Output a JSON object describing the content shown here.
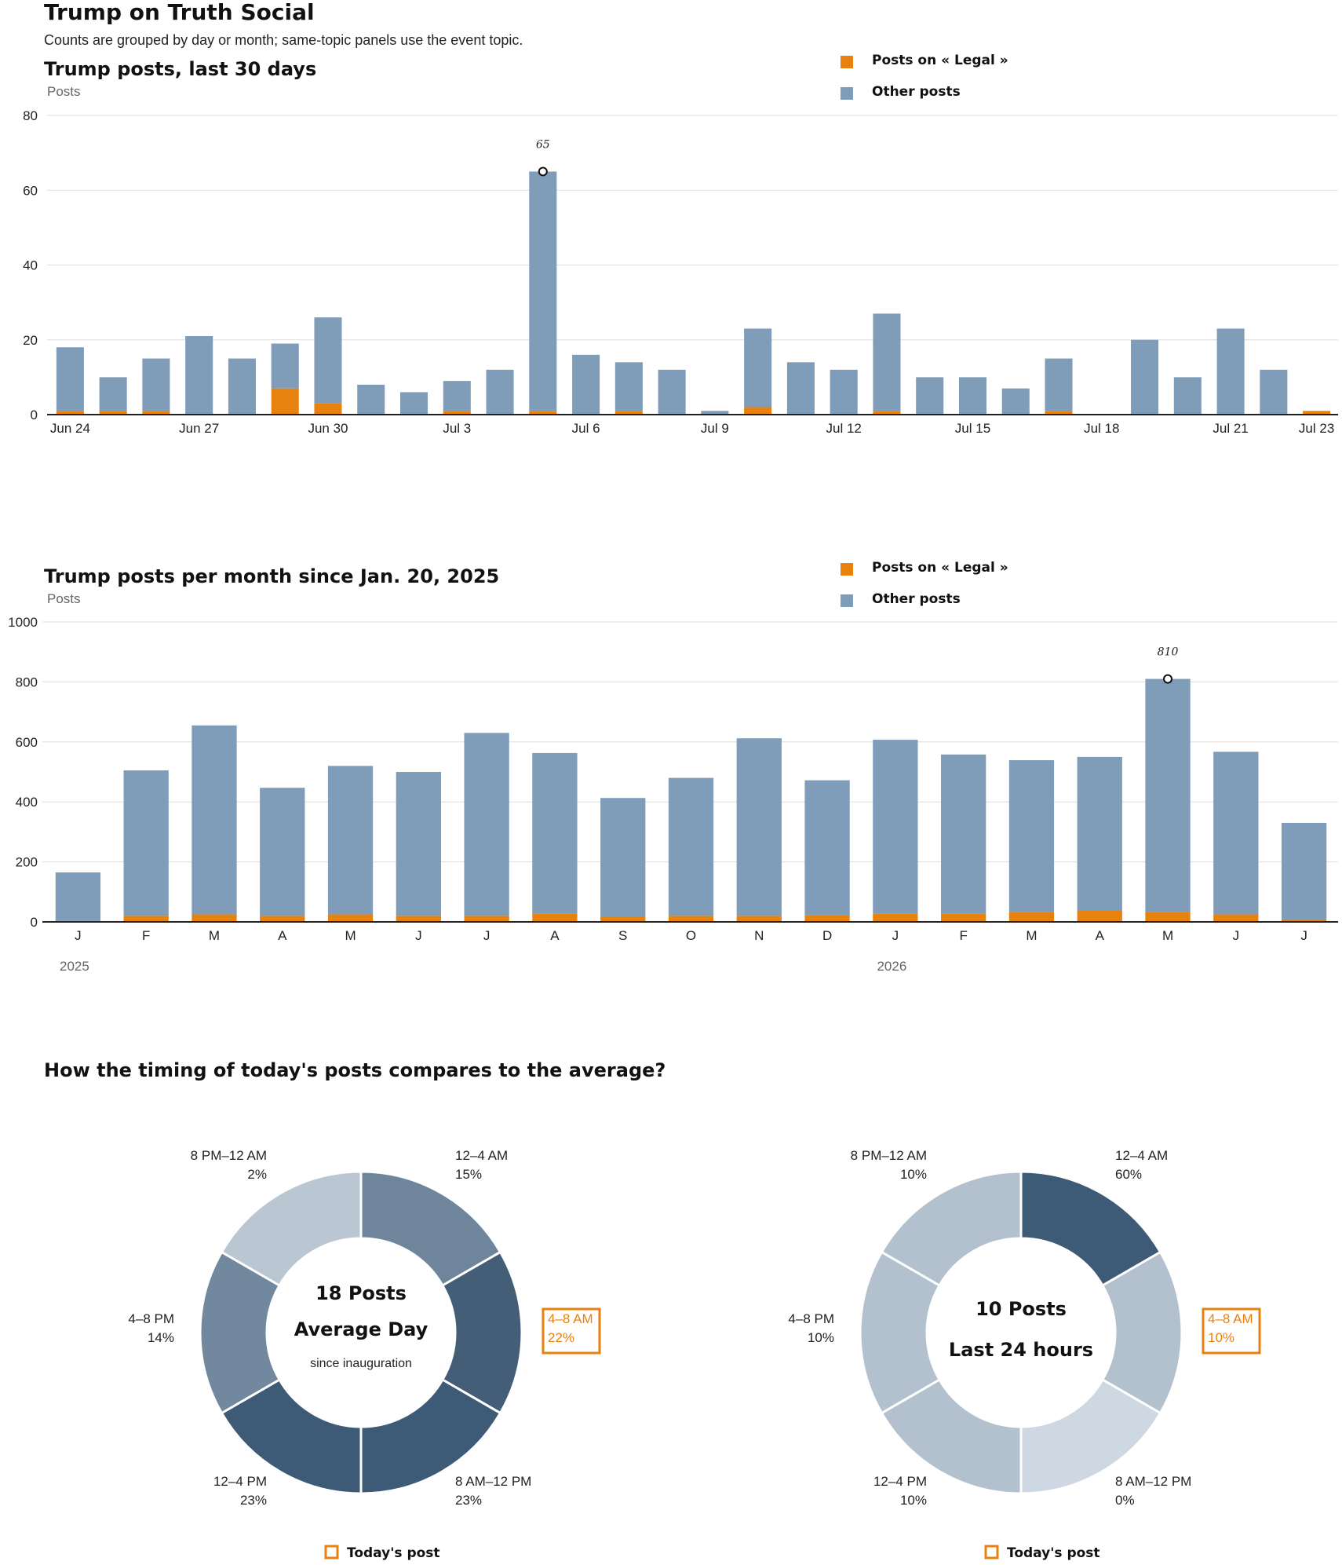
{
  "header": {
    "title": "Trump on Truth Social",
    "subtitle": "Counts are grouped by day or month; same-topic panels use the event topic."
  },
  "colors": {
    "topic": "#e8820f",
    "other": "#7f9cb9",
    "grid": "#dddddd",
    "axis": "#222222",
    "highlight": "#e8820f"
  },
  "chart_data": [
    {
      "type": "bar",
      "title": "Trump posts, last 30 days",
      "ylabel": "Posts",
      "ylim": [
        0,
        80
      ],
      "yticks": [
        0,
        20,
        40,
        60,
        80
      ],
      "grid": true,
      "stacked": true,
      "legend_position": "top-right",
      "categories": [
        "Jun 24",
        "Jun 25",
        "Jun 26",
        "Jun 27",
        "Jun 28",
        "Jun 29",
        "Jun 30",
        "Jul 1",
        "Jul 2",
        "Jul 3",
        "Jul 4",
        "Jul 5",
        "Jul 6",
        "Jul 7",
        "Jul 8",
        "Jul 9",
        "Jul 10",
        "Jul 11",
        "Jul 12",
        "Jul 13",
        "Jul 14",
        "Jul 15",
        "Jul 16",
        "Jul 17",
        "Jul 18",
        "Jul 19",
        "Jul 20",
        "Jul 21",
        "Jul 22",
        "Jul 23"
      ],
      "x_tick_labels": [
        "Jun 24",
        "",
        "",
        "Jun 27",
        "",
        "",
        "Jun 30",
        "",
        "",
        "Jul 3",
        "",
        "",
        "Jul 6",
        "",
        "",
        "Jul 9",
        "",
        "",
        "Jul 12",
        "",
        "",
        "Jul 15",
        "",
        "",
        "Jul 18",
        "",
        "",
        "Jul 21",
        "",
        "Jul 23"
      ],
      "series": [
        {
          "name": "Posts on « Legal »",
          "color": "#e8820f",
          "values": [
            1,
            1,
            1,
            0,
            0,
            7,
            3,
            0,
            0,
            1,
            0,
            1,
            0,
            1,
            0,
            0,
            2,
            0,
            0,
            1,
            0,
            0,
            0,
            1,
            0,
            0,
            0,
            0,
            0,
            1
          ]
        },
        {
          "name": "Other posts",
          "color": "#7f9cb9",
          "values": [
            17,
            9,
            14,
            21,
            15,
            12,
            23,
            8,
            6,
            8,
            12,
            64,
            16,
            13,
            12,
            1,
            21,
            14,
            12,
            26,
            10,
            10,
            7,
            14,
            0,
            20,
            10,
            23,
            12,
            0
          ]
        }
      ],
      "annotation": {
        "index": 11,
        "label": "65",
        "value": 65
      }
    },
    {
      "type": "bar",
      "title": "Trump posts per month since Jan. 20, 2025",
      "ylabel": "Posts",
      "ylim": [
        0,
        1000
      ],
      "yticks": [
        0,
        200,
        400,
        600,
        800,
        1000
      ],
      "grid": true,
      "stacked": true,
      "legend_position": "top-right",
      "categories": [
        "J",
        "F",
        "M",
        "A",
        "M",
        "J",
        "J",
        "A",
        "S",
        "O",
        "N",
        "D",
        "J",
        "F",
        "M",
        "A",
        "M",
        "J",
        "J"
      ],
      "year_labels": [
        {
          "index": 0,
          "label": "2025"
        },
        {
          "index": 12,
          "label": "2026"
        }
      ],
      "series": [
        {
          "name": "Posts on « Legal »",
          "color": "#e8820f",
          "values": [
            3,
            20,
            25,
            20,
            25,
            20,
            20,
            28,
            17,
            20,
            20,
            22,
            27,
            27,
            33,
            38,
            33,
            25,
            8
          ]
        },
        {
          "name": "Other posts",
          "color": "#7f9cb9",
          "values": [
            162,
            485,
            630,
            427,
            495,
            480,
            610,
            535,
            396,
            460,
            592,
            450,
            580,
            531,
            506,
            512,
            777,
            542,
            322
          ]
        }
      ],
      "annotation": {
        "index": 16,
        "label": "810",
        "value": 810
      }
    },
    {
      "type": "pie",
      "title": "How the timing of today's posts compares to the average?",
      "center_line1": "18 Posts",
      "center_line2": "Average Day",
      "center_line3": "since inauguration",
      "highlight_index": 1,
      "slices": [
        {
          "label": "12–4 AM",
          "pct": "15%",
          "color": "#6e859b"
        },
        {
          "label": "4–8 AM",
          "pct": "22%",
          "color": "#445e78"
        },
        {
          "label": "8 AM–12 PM",
          "pct": "23%",
          "color": "#3d5a76"
        },
        {
          "label": "12–4 PM",
          "pct": "23%",
          "color": "#3d5a76"
        },
        {
          "label": "4–8 PM",
          "pct": "14%",
          "color": "#72889e"
        },
        {
          "label": "8 PM–12 AM",
          "pct": "2%",
          "color": "#bac7d3"
        }
      ],
      "legend": "Today's post"
    },
    {
      "type": "pie",
      "center_line1": "10 Posts",
      "center_line2": "Last 24 hours",
      "highlight_index": 1,
      "slices": [
        {
          "label": "12–4 AM",
          "pct": "60%",
          "color": "#3d5a76"
        },
        {
          "label": "4–8 AM",
          "pct": "10%",
          "color": "#b3c1ce"
        },
        {
          "label": "8 AM–12 PM",
          "pct": "0%",
          "color": "#cdd8e2"
        },
        {
          "label": "12–4 PM",
          "pct": "10%",
          "color": "#b3c1ce"
        },
        {
          "label": "4–8 PM",
          "pct": "10%",
          "color": "#b3c1ce"
        },
        {
          "label": "8 PM–12 AM",
          "pct": "10%",
          "color": "#b3c1ce"
        }
      ],
      "legend": "Today's post"
    }
  ]
}
